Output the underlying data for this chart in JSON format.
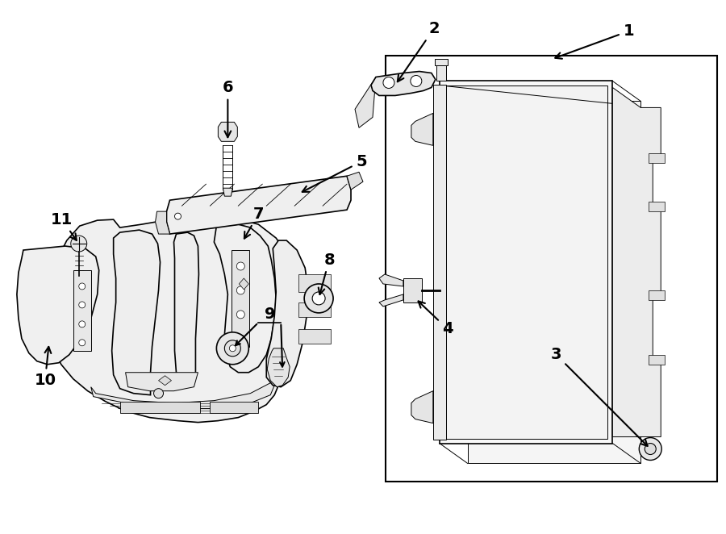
{
  "bg_color": "#ffffff",
  "lc": "#000000",
  "fig_width": 9.0,
  "fig_height": 6.62,
  "dpi": 100,
  "lw_main": 1.2,
  "lw_thin": 0.7,
  "fill_light": "#f0f0f0",
  "fill_mid": "#e0e0e0",
  "label_fontsize": 14,
  "label_fontweight": "bold"
}
